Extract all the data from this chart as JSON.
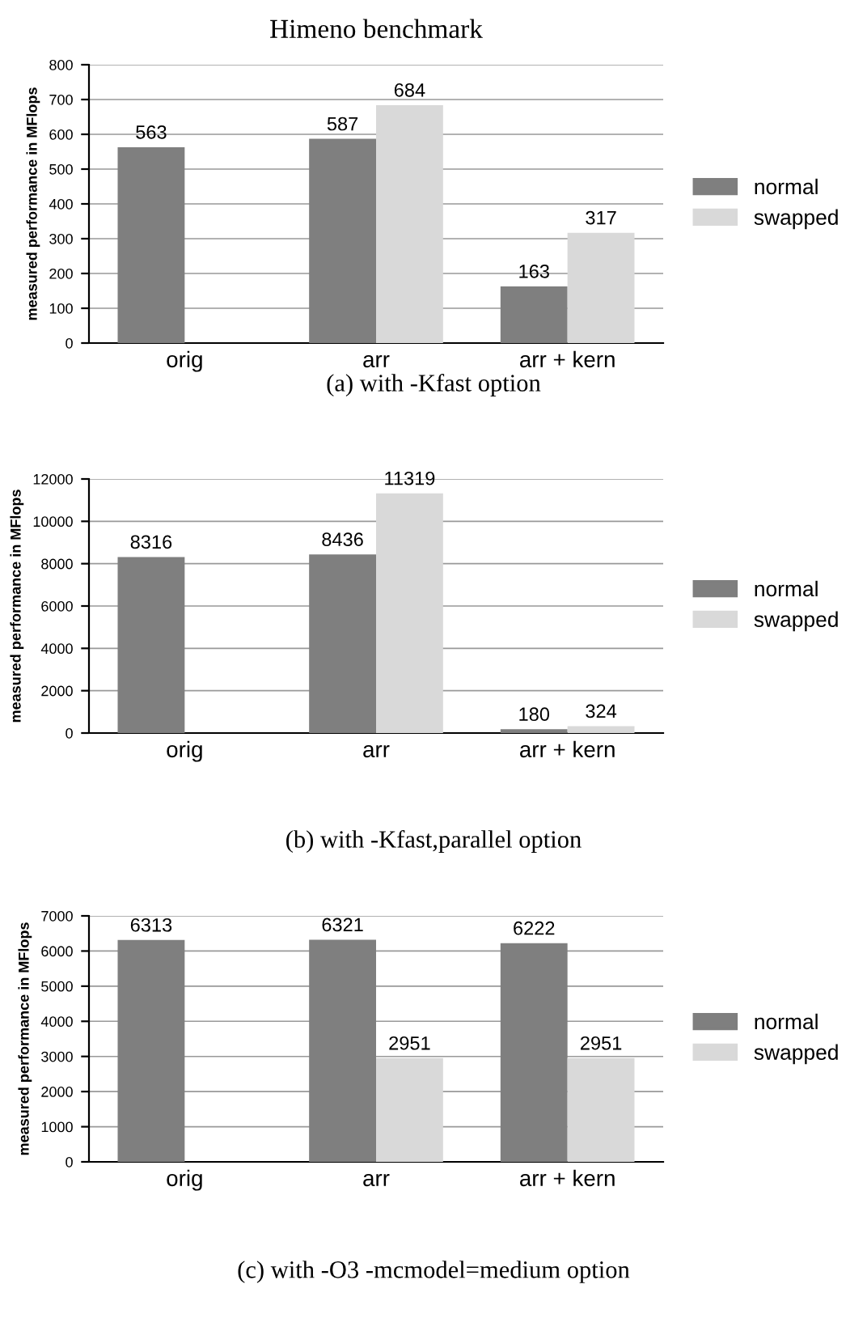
{
  "chart_data": [
    {
      "type": "bar",
      "title": "Himeno benchmark",
      "ylabel": "measured performance in MFlops",
      "categories": [
        "orig",
        "arr",
        "arr + kern"
      ],
      "series": [
        {
          "name": "normal",
          "color": "#7f7f7f",
          "values": [
            563,
            587,
            163
          ]
        },
        {
          "name": "swapped",
          "color": "#d9d9d9",
          "values": [
            null,
            684,
            317
          ]
        }
      ],
      "ylim": [
        0,
        800
      ],
      "yticks": [
        0,
        100,
        200,
        300,
        400,
        500,
        600,
        700,
        800
      ],
      "grid": "y",
      "legend": "right",
      "data_labels": true,
      "annotations": [
        "(a) with -Kfast option"
      ]
    },
    {
      "type": "bar",
      "ylabel": "measured performance in MFlops",
      "categories": [
        "orig",
        "arr",
        "arr + kern"
      ],
      "series": [
        {
          "name": "normal",
          "color": "#7f7f7f",
          "values": [
            8316,
            8436,
            180
          ]
        },
        {
          "name": "swapped",
          "color": "#d9d9d9",
          "values": [
            null,
            11319,
            324
          ]
        }
      ],
      "ylim": [
        0,
        12000
      ],
      "yticks": [
        0,
        2000,
        4000,
        6000,
        8000,
        10000,
        12000
      ],
      "grid": "y",
      "legend": "right",
      "data_labels": true,
      "annotations": [
        "(b) with -Kfast,parallel option"
      ]
    },
    {
      "type": "bar",
      "ylabel": "measured performance in MFlops",
      "categories": [
        "orig",
        "arr",
        "arr + kern"
      ],
      "series": [
        {
          "name": "normal",
          "color": "#7f7f7f",
          "values": [
            6313,
            6321,
            6222
          ]
        },
        {
          "name": "swapped",
          "color": "#d9d9d9",
          "values": [
            null,
            2951,
            2951
          ]
        }
      ],
      "ylim": [
        0,
        7000
      ],
      "yticks": [
        0,
        1000,
        2000,
        3000,
        4000,
        5000,
        6000,
        7000
      ],
      "grid": "y",
      "legend": "right",
      "data_labels": true,
      "annotations": [
        "(c) with -O3 -mcmodel=medium option"
      ]
    }
  ]
}
